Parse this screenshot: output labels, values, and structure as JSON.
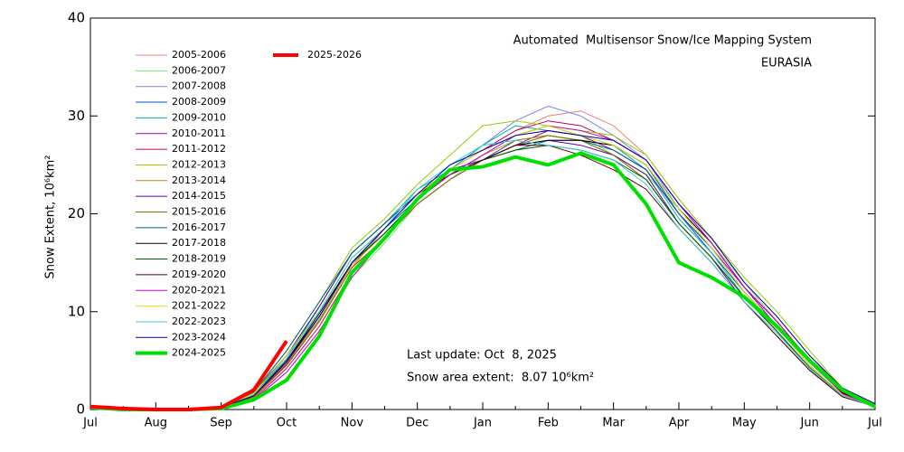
{
  "chart_data": {
    "type": "line",
    "title": "Automated  Multisensor Snow/Ice Mapping System",
    "subtitle": "EURASIA",
    "ylabel": "Snow Extent, 10⁶km²",
    "annotations": [
      "Last update: Oct  8, 2025",
      "Snow area extent:  8.07 10⁶km²"
    ],
    "categories": [
      "Jul",
      null,
      "Aug",
      null,
      "Sep",
      null,
      "Oct",
      null,
      "Nov",
      null,
      "Dec",
      null,
      "Jan",
      null,
      "Feb",
      null,
      "Mar",
      null,
      "Apr",
      null,
      "May",
      null,
      "Jun",
      null,
      "Jul"
    ],
    "ylim": [
      0,
      40
    ],
    "yticks": [
      0,
      10,
      20,
      30,
      40
    ],
    "series": [
      {
        "name": "2005-2006",
        "color": "#f08080",
        "values": [
          0.3,
          0.1,
          0,
          0,
          0.2,
          1.2,
          4.5,
          9,
          14.5,
          18.5,
          22,
          24.5,
          26.5,
          28.5,
          30,
          30.5,
          29,
          26,
          21.5,
          17.5,
          13,
          9.5,
          5.5,
          2,
          0.4
        ]
      },
      {
        "name": "2006-2007",
        "color": "#80e080",
        "values": [
          0.2,
          0.1,
          0,
          0,
          0.1,
          1,
          3.8,
          8,
          13.5,
          17,
          21,
          23.5,
          26,
          28,
          29,
          28,
          26,
          24,
          20.5,
          17,
          13,
          9,
          5,
          1.8,
          0.3
        ]
      },
      {
        "name": "2007-2008",
        "color": "#8080ff",
        "values": [
          0.3,
          0.1,
          0,
          0,
          0.2,
          1.4,
          4.8,
          9.5,
          15,
          18.5,
          22,
          24.5,
          27,
          29.5,
          31,
          30,
          28,
          25.5,
          20.5,
          16.5,
          12,
          8.5,
          4.5,
          1.5,
          0.3
        ]
      },
      {
        "name": "2008-2009",
        "color": "#0050c0",
        "values": [
          0.3,
          0.1,
          0,
          0,
          0.3,
          1.8,
          5.5,
          10,
          15.5,
          18.5,
          21.5,
          24,
          25.5,
          27.5,
          28,
          27.5,
          27,
          25,
          20,
          16,
          12,
          8.5,
          4.8,
          1.8,
          0.5
        ]
      },
      {
        "name": "2009-2010",
        "color": "#00b0b0",
        "values": [
          0.2,
          0.1,
          0,
          0,
          0.2,
          1.6,
          5.2,
          10.5,
          16,
          19,
          22.5,
          24.5,
          27,
          29,
          28.5,
          28,
          27,
          24.5,
          19.5,
          16,
          11.5,
          8,
          4.2,
          1.4,
          0.3
        ]
      },
      {
        "name": "2010-2011",
        "color": "#a000a0",
        "values": [
          0.3,
          0.1,
          0,
          0,
          0.2,
          1.3,
          4.6,
          9,
          14.5,
          17.5,
          21,
          23.5,
          25.5,
          27,
          28.5,
          28,
          26.5,
          24.5,
          20,
          16.5,
          12.5,
          8.5,
          4.5,
          1.5,
          0.3
        ]
      },
      {
        "name": "2011-2012",
        "color": "#c00060",
        "values": [
          0.3,
          0.1,
          0,
          0,
          0.2,
          1.1,
          4.2,
          8.5,
          14,
          17.5,
          21.5,
          24.5,
          26.5,
          28.5,
          29.5,
          29,
          27.5,
          25.5,
          21,
          17,
          12.5,
          9,
          5,
          1.8,
          0.3
        ]
      },
      {
        "name": "2012-2013",
        "color": "#90d000",
        "values": [
          0.2,
          0.1,
          0,
          0,
          0.2,
          1.7,
          6,
          11,
          16.5,
          19.5,
          23,
          26,
          29,
          29.5,
          29,
          28.5,
          28,
          26,
          21.5,
          17.5,
          13.5,
          10,
          6,
          2.2,
          0.4
        ]
      },
      {
        "name": "2013-2014",
        "color": "#c09000",
        "values": [
          0.3,
          0.1,
          0,
          0,
          0.2,
          1.4,
          4.8,
          9.2,
          14.8,
          18,
          21.5,
          24,
          26,
          27.5,
          28,
          27.5,
          26,
          23.5,
          19,
          15.5,
          11.5,
          8,
          4.2,
          1.4,
          0.3
        ]
      },
      {
        "name": "2014-2015",
        "color": "#6000a0",
        "values": [
          0.3,
          0.1,
          0,
          0,
          0.2,
          1.5,
          5.5,
          10.5,
          16,
          19,
          22,
          24.5,
          25.5,
          27,
          27.5,
          27,
          26,
          24,
          19,
          15.5,
          11,
          7.5,
          4,
          1.3,
          0.3
        ]
      },
      {
        "name": "2015-2016",
        "color": "#807000",
        "values": [
          0.2,
          0.1,
          0,
          0,
          0.2,
          1.3,
          4.5,
          9,
          14.5,
          17.5,
          21,
          23.5,
          25.5,
          27,
          28,
          27.5,
          26,
          23.5,
          19,
          15.5,
          11.5,
          8,
          4.3,
          1.4,
          0.3
        ]
      },
      {
        "name": "2016-2017",
        "color": "#006090",
        "values": [
          0.3,
          0.1,
          0,
          0,
          0.2,
          1.8,
          6,
          11,
          16,
          19,
          22,
          24,
          25.5,
          26.5,
          27.5,
          27.5,
          26.5,
          24.5,
          20,
          16.5,
          12,
          8.5,
          4.8,
          1.7,
          0.4
        ]
      },
      {
        "name": "2017-2018",
        "color": "#000000",
        "values": [
          0.3,
          0.1,
          0,
          0,
          0.2,
          1.4,
          5,
          9.8,
          15,
          18,
          21.5,
          24,
          25.5,
          27,
          27.5,
          27.5,
          27,
          25,
          20.5,
          17,
          12.5,
          9,
          5,
          1.7,
          0.4
        ]
      },
      {
        "name": "2018-2019",
        "color": "#006000",
        "values": [
          0.3,
          0.1,
          0,
          0,
          0.2,
          1.5,
          5,
          9.5,
          15,
          18,
          21.5,
          24,
          25.5,
          26.5,
          27,
          26.5,
          25.5,
          23.5,
          19,
          15.5,
          11.5,
          8,
          4.3,
          1.4,
          0.3
        ]
      },
      {
        "name": "2019-2020",
        "color": "#600000",
        "values": [
          0.3,
          0.1,
          0,
          0,
          0.2,
          1.4,
          4.8,
          9.5,
          15,
          18.5,
          22,
          24,
          25.5,
          27,
          27,
          26,
          24.5,
          22.5,
          18.5,
          15,
          11,
          7.5,
          4,
          1.3,
          0.3
        ]
      },
      {
        "name": "2020-2021",
        "color": "#d000d0",
        "values": [
          0.2,
          0.1,
          0,
          0,
          0.1,
          1,
          3.8,
          8,
          13.5,
          17.5,
          21.5,
          24,
          26,
          28,
          29,
          28.5,
          27.5,
          25.5,
          21,
          17,
          12.5,
          9,
          5,
          1.6,
          0.3
        ]
      },
      {
        "name": "2021-2022",
        "color": "#e0e000",
        "values": [
          0.3,
          0.1,
          0,
          0,
          0.2,
          1.6,
          5.5,
          10,
          15.5,
          18.5,
          22,
          24.5,
          26.5,
          28,
          29,
          28,
          27,
          25,
          20.5,
          16.5,
          12,
          8.5,
          4.5,
          1.5,
          0.2
        ]
      },
      {
        "name": "2022-2023",
        "color": "#30d0d0",
        "values": [
          0.3,
          0.1,
          0,
          0,
          0.2,
          1.5,
          5.2,
          10,
          15.5,
          18.5,
          22.5,
          25,
          27,
          27.5,
          27,
          26.5,
          25.5,
          23,
          18.5,
          15,
          11,
          7.8,
          4.2,
          1.4,
          0.3
        ]
      },
      {
        "name": "2023-2024",
        "color": "#0000a0",
        "values": [
          0.3,
          0.1,
          0,
          0,
          0.2,
          1.4,
          5,
          9.5,
          15,
          18.5,
          22,
          25,
          26.5,
          28,
          28.5,
          28,
          27.5,
          25.5,
          21,
          17.5,
          13,
          9.5,
          5.5,
          2.2,
          0.6
        ]
      },
      {
        "name": "2024-2025",
        "color": "#00e000",
        "linewidth": 4,
        "values": [
          0.2,
          0,
          0,
          0,
          0.1,
          1,
          3,
          7.5,
          14,
          17.5,
          21.5,
          24.5,
          24.8,
          25.8,
          25,
          26.2,
          25,
          21,
          15,
          13.5,
          11.5,
          8.5,
          5,
          2,
          0.3
        ]
      },
      {
        "name": "2025-2026",
        "color": "#ff0000",
        "linewidth": 4,
        "values": [
          0.3,
          0.1,
          0,
          0,
          0.2,
          2,
          7,
          null,
          null,
          null,
          null,
          null,
          null,
          null,
          null,
          null,
          null,
          null,
          null,
          null,
          null,
          null,
          null,
          null,
          null
        ]
      }
    ]
  }
}
